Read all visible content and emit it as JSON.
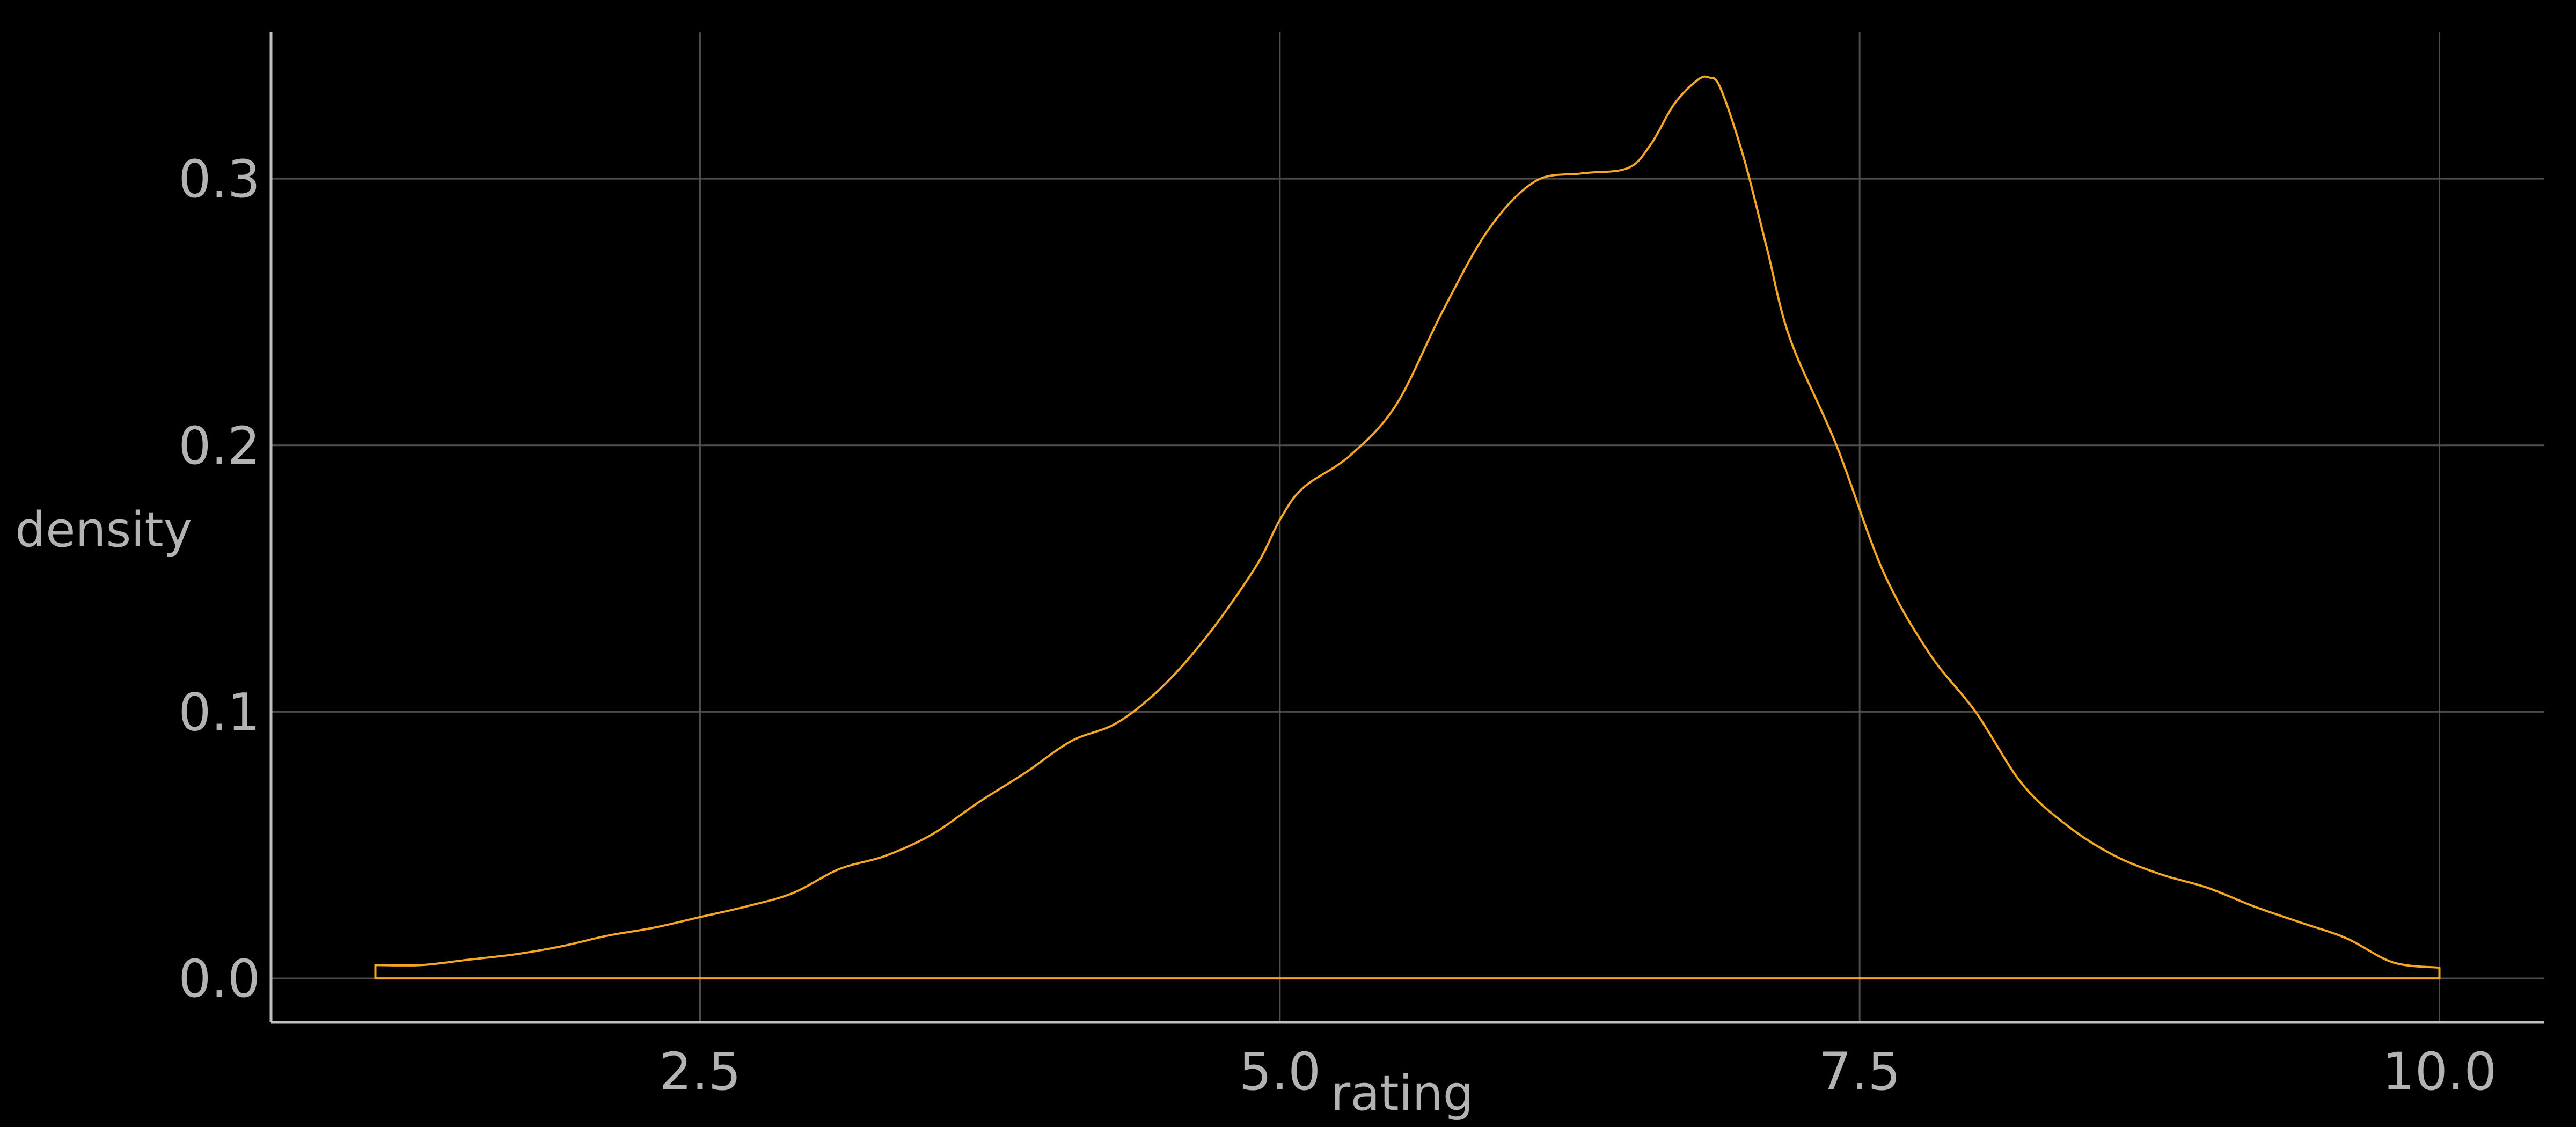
{
  "chart_data": {
    "type": "area",
    "title": "",
    "xlabel": "rating",
    "ylabel": "density",
    "xlim": [
      0.65,
      10.45
    ],
    "ylim": [
      -0.0165,
      0.355
    ],
    "x_ticks": [
      2.5,
      5.0,
      7.5,
      10.0
    ],
    "x_tick_labels": [
      "2.5",
      "5.0",
      "7.5",
      "10.0"
    ],
    "y_ticks": [
      0.0,
      0.1,
      0.2,
      0.3
    ],
    "y_tick_labels": [
      "0.0",
      "0.1",
      "0.2",
      "0.3"
    ],
    "grid": true,
    "legend": "none",
    "colors": {
      "background": "#000000",
      "line": "#f5a623",
      "grid": "#4d4d4d",
      "axis": "#bfbfbf",
      "text": "#b3b3b3"
    },
    "series": [
      {
        "x": [
          1.1,
          1.3,
          1.5,
          1.7,
          1.9,
          2.1,
          2.3,
          2.5,
          2.7,
          2.9,
          3.1,
          3.3,
          3.5,
          3.7,
          3.9,
          4.1,
          4.3,
          4.5,
          4.7,
          4.9,
          5.0,
          5.1,
          5.3,
          5.5,
          5.7,
          5.9,
          6.1,
          6.3,
          6.5,
          6.6,
          6.7,
          6.8,
          6.85,
          6.9,
          7.0,
          7.1,
          7.2,
          7.4,
          7.6,
          7.8,
          8.0,
          8.2,
          8.4,
          8.6,
          8.8,
          9.0,
          9.2,
          9.4,
          9.6,
          9.8,
          10.0
        ],
        "y": [
          0.005,
          0.005,
          0.007,
          0.009,
          0.012,
          0.016,
          0.019,
          0.023,
          0.027,
          0.032,
          0.041,
          0.046,
          0.054,
          0.066,
          0.077,
          0.089,
          0.096,
          0.11,
          0.13,
          0.155,
          0.172,
          0.184,
          0.196,
          0.215,
          0.25,
          0.281,
          0.299,
          0.302,
          0.304,
          0.313,
          0.328,
          0.337,
          0.338,
          0.334,
          0.308,
          0.274,
          0.24,
          0.2,
          0.153,
          0.122,
          0.1,
          0.073,
          0.057,
          0.046,
          0.039,
          0.034,
          0.027,
          0.021,
          0.015,
          0.006,
          0.004
        ]
      }
    ]
  }
}
